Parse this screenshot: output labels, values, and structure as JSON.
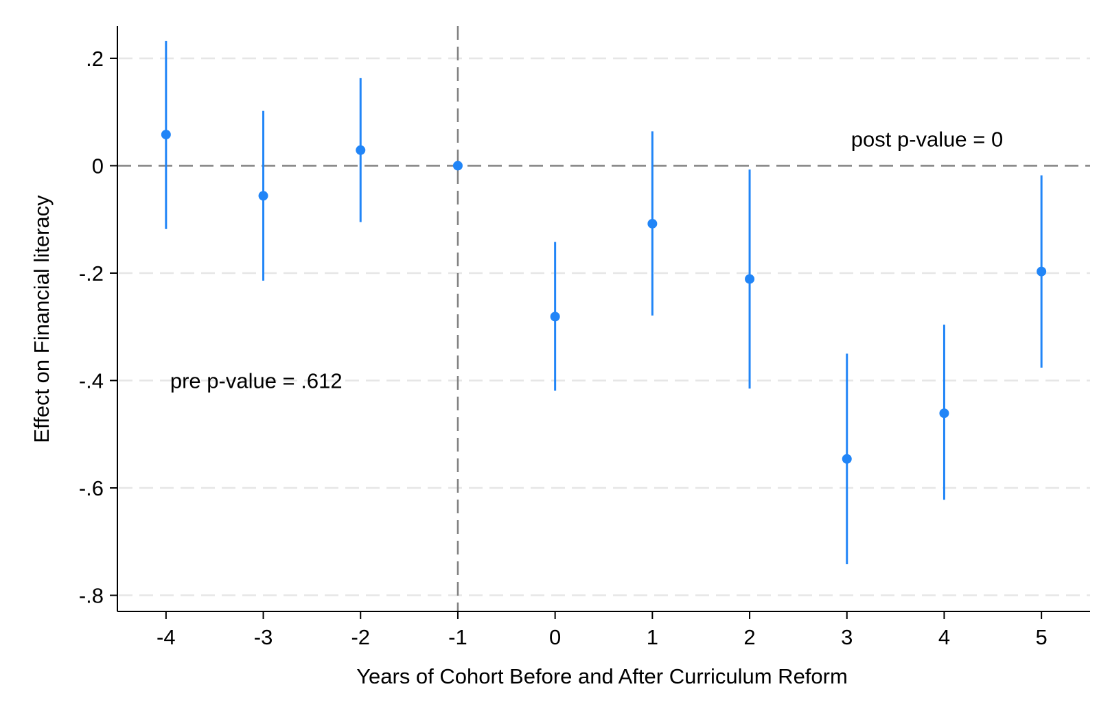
{
  "chart_data": {
    "type": "scatter",
    "subtype": "coefficient plot with confidence intervals",
    "xlabel": "Years of Cohort Before and After Curriculum Reform",
    "ylabel": "Effect on Financial literacy",
    "xlim": [
      -4.5,
      5.5
    ],
    "ylim": [
      -0.83,
      0.26
    ],
    "x_ticks": [
      -4,
      -3,
      -2,
      -1,
      0,
      1,
      2,
      3,
      4,
      5
    ],
    "x_tick_labels": [
      "-4",
      "-3",
      "-2",
      "-1",
      "0",
      "1",
      "2",
      "3",
      "4",
      "5"
    ],
    "y_ticks": [
      0.2,
      0,
      -0.2,
      -0.4,
      -0.6,
      -0.8
    ],
    "y_tick_labels": [
      ".2",
      "0",
      "-.2",
      "-.4",
      "-.6",
      "-.8"
    ],
    "grid": "horizontal, dashed, light gray",
    "series": [
      {
        "x": [
          -4,
          -3,
          -2,
          -1,
          0,
          1,
          2,
          3,
          4,
          5
        ],
        "values": [
          0.058,
          -0.056,
          0.029,
          0.0,
          -0.281,
          -0.108,
          -0.211,
          -0.546,
          -0.461,
          -0.197
        ],
        "ci_low": [
          -0.118,
          -0.214,
          -0.105,
          0.0,
          -0.419,
          -0.279,
          -0.415,
          -0.742,
          -0.622,
          -0.376
        ],
        "ci_high": [
          0.232,
          0.102,
          0.163,
          0.0,
          -0.142,
          0.064,
          -0.007,
          -0.35,
          -0.296,
          -0.018
        ],
        "color": "#2185f7"
      }
    ],
    "reference_lines": [
      {
        "axis": "y",
        "value": 0,
        "style": "dashed",
        "color": "#808080"
      },
      {
        "axis": "x",
        "value": -1,
        "style": "dashed",
        "color": "#808080"
      }
    ],
    "annotations": [
      {
        "text": "pre p-value = .612",
        "x": -4,
        "y": -0.4
      },
      {
        "text": "post p-value = 0",
        "x": 3,
        "y": 0.05
      }
    ]
  }
}
